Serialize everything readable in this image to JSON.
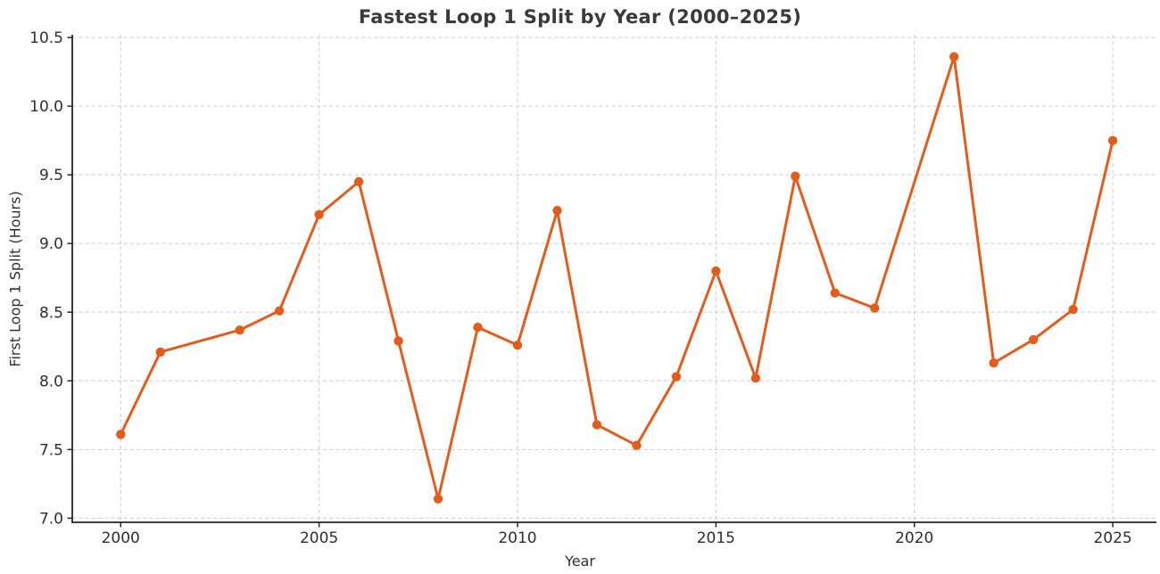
{
  "figure": {
    "background": "#ffffff"
  },
  "chart_data": {
    "type": "line",
    "title": "Fastest Loop 1 Split by Year (2000–2025)",
    "xlabel": "Year",
    "ylabel": "First Loop 1 Split (Hours)",
    "x": [
      2000,
      2001,
      2003,
      2004,
      2005,
      2006,
      2007,
      2008,
      2009,
      2010,
      2011,
      2012,
      2013,
      2014,
      2015,
      2016,
      2017,
      2018,
      2019,
      2021,
      2022,
      2023,
      2024,
      2025
    ],
    "y": [
      7.61,
      8.21,
      8.37,
      8.51,
      9.21,
      9.45,
      8.29,
      7.14,
      8.39,
      8.26,
      9.24,
      7.68,
      7.53,
      8.03,
      8.8,
      8.02,
      9.49,
      8.64,
      8.53,
      10.36,
      8.13,
      8.3,
      8.52,
      9.75
    ],
    "xticks": [
      2000,
      2005,
      2010,
      2015,
      2020,
      2025
    ],
    "xtick_labels": [
      "2000",
      "2005",
      "2010",
      "2015",
      "2020",
      "2025"
    ],
    "yticks": [
      7.0,
      7.5,
      8.0,
      8.5,
      9.0,
      9.5,
      10.0,
      10.5
    ],
    "ytick_labels": [
      "7.0",
      "7.5",
      "8.0",
      "8.5",
      "9.0",
      "9.5",
      "10.0",
      "10.5"
    ],
    "xlim": [
      1998.78,
      2026.1
    ],
    "ylim": [
      6.97,
      10.52
    ],
    "grid": true,
    "grid_style": "dashed",
    "legend": false,
    "marker": "circle",
    "colors": {
      "line": "#e05d1e",
      "marker": "#e05d1e",
      "grid": "#cccccc",
      "spine": "#262626",
      "tick_text": "#2e2e2e",
      "title_text": "#3a3a3a"
    }
  }
}
